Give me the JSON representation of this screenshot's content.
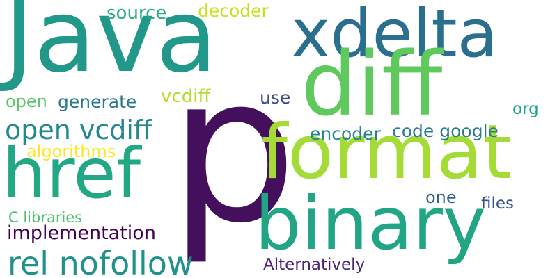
{
  "words": {
    "p": {
      "text": "p",
      "color": "#440f5c"
    },
    "java": {
      "text": "Java",
      "color": "#22988a"
    },
    "xdelta": {
      "text": "xdelta",
      "color": "#2b6f8e"
    },
    "diff": {
      "text": "diff",
      "color": "#5fc95e"
    },
    "format": {
      "text": "format",
      "color": "#a5db36"
    },
    "href": {
      "text": "href",
      "color": "#22a884"
    },
    "binary": {
      "text": "binary",
      "color": "#21a585"
    },
    "rel_nofollow": {
      "text": "rel nofollow",
      "color": "#21918c"
    },
    "open_vcdiff": {
      "text": "open vcdiff",
      "color": "#23898e"
    },
    "source": {
      "text": "source",
      "color": "#2aac7f"
    },
    "decoder": {
      "text": "decoder",
      "color": "#c8e020"
    },
    "open": {
      "text": "open",
      "color": "#5ac864"
    },
    "generate": {
      "text": "generate",
      "color": "#2a788e"
    },
    "vcdiff": {
      "text": "vcdiff",
      "color": "#b5de2b"
    },
    "use": {
      "text": "use",
      "color": "#3e4989"
    },
    "org": {
      "text": "org",
      "color": "#20a386"
    },
    "encoder": {
      "text": "encoder",
      "color": "#25848e"
    },
    "code_google": {
      "text": "code google",
      "color": "#2a7b8e"
    },
    "algorithms": {
      "text": "algorithms",
      "color": "#fde725"
    },
    "one": {
      "text": "one",
      "color": "#33638d"
    },
    "files": {
      "text": "files",
      "color": "#3b518b"
    },
    "c_libraries": {
      "text": "C libraries",
      "color": "#4ac16d"
    },
    "implementation": {
      "text": "implementation",
      "color": "#440154"
    },
    "alternatively": {
      "text": "Alternatively",
      "color": "#482576"
    }
  }
}
